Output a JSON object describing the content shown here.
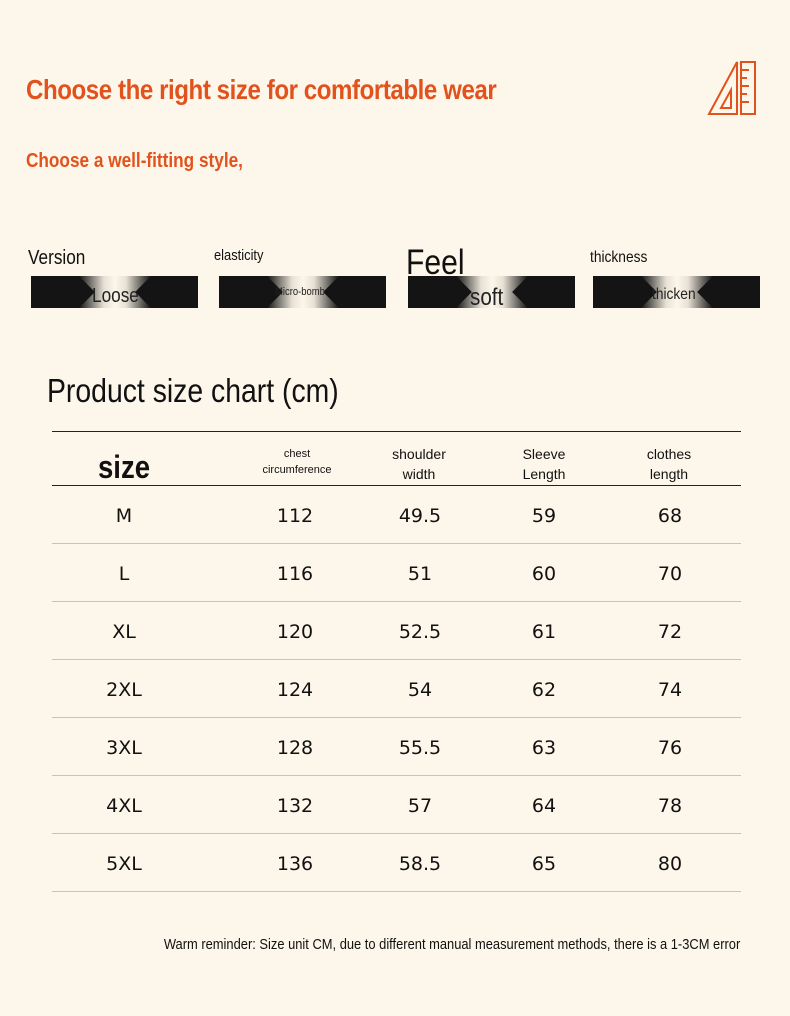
{
  "header": {
    "title": "Choose the right size for comfortable wear",
    "subtitle": "Choose a well-fitting style,",
    "icon": "ruler-triangle-icon",
    "accent_color": "#e2521c"
  },
  "attributes": [
    {
      "label": "Version",
      "value": "Loose"
    },
    {
      "label": "elasticity",
      "value": "Micro-bomb"
    },
    {
      "label": "Feel",
      "value": "soft"
    },
    {
      "label": "thickness",
      "value": "thicken"
    }
  ],
  "size_chart": {
    "title": "Product size chart (cm)",
    "headers": {
      "size": "size",
      "chest": [
        "chest",
        "circumference"
      ],
      "shoulder": [
        "shoulder",
        "width"
      ],
      "sleeve": [
        "Sleeve",
        "Length"
      ],
      "length": [
        "clothes",
        "length"
      ]
    },
    "rows": [
      [
        "M",
        "112",
        "49.5",
        "59",
        "68"
      ],
      [
        "L",
        "116",
        "51",
        "60",
        "70"
      ],
      [
        "XL",
        "120",
        "52.5",
        "61",
        "72"
      ],
      [
        "2XL",
        "124",
        "54",
        "62",
        "74"
      ],
      [
        "3XL",
        "128",
        "55.5",
        "63",
        "76"
      ],
      [
        "4XL",
        "132",
        "57",
        "64",
        "78"
      ],
      [
        "5XL",
        "136",
        "58.5",
        "65",
        "80"
      ]
    ]
  },
  "footer": {
    "reminder": "Warm reminder: Size unit CM, due to different manual measurement methods, there is a 1-3CM error"
  }
}
